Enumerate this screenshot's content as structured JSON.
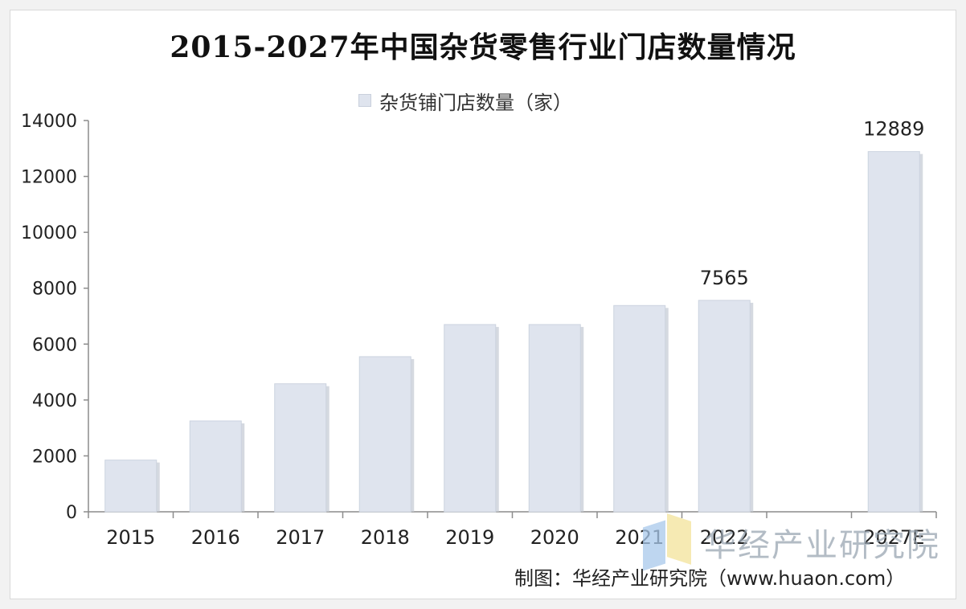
{
  "chart_data": {
    "type": "bar",
    "title": "2015-2027年中国杂货零售行业门店数量情况",
    "legend": [
      "杂货铺门店数量（家）"
    ],
    "legend_position": "top",
    "categories": [
      "2015",
      "2016",
      "2017",
      "2018",
      "2019",
      "2020",
      "2021",
      "2022",
      "",
      "2027E"
    ],
    "series": [
      {
        "name": "杂货铺门店数量（家）",
        "values": [
          1850,
          3250,
          4580,
          5550,
          6700,
          6700,
          7380,
          7565,
          null,
          12889
        ]
      }
    ],
    "data_labels": [
      "",
      "",
      "",
      "",
      "",
      "",
      "",
      "7565",
      "",
      "12889"
    ],
    "ylim": [
      0,
      14000
    ],
    "yticks": [
      0,
      2000,
      4000,
      6000,
      8000,
      10000,
      12000,
      14000
    ],
    "grid": false,
    "bar_color": "#dfe4ee"
  },
  "watermark": {
    "text": "华经产业研究院"
  },
  "credit": "制图：华经产业研究院（www.huaon.com）"
}
